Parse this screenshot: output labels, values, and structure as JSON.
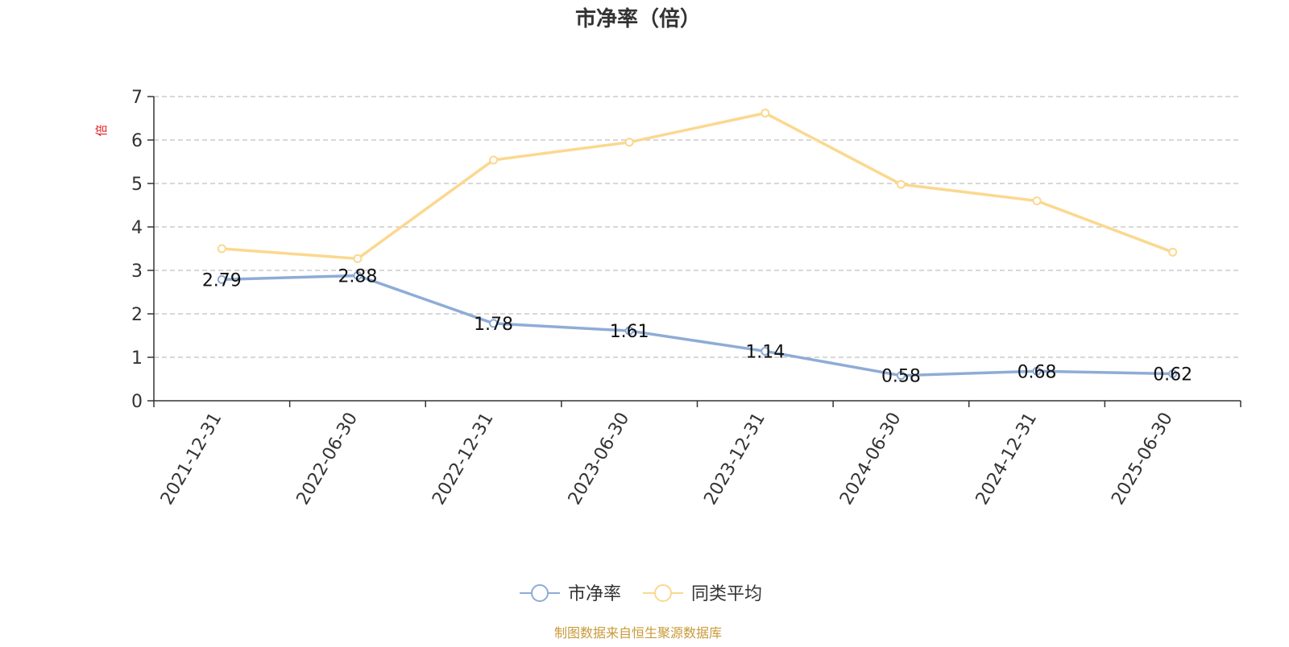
{
  "chart_data": {
    "type": "line",
    "title": "市净率（倍）",
    "ylabel": "倍",
    "xlabel": "",
    "categories": [
      "2021-12-31",
      "2022-06-30",
      "2022-12-31",
      "2023-06-30",
      "2023-12-31",
      "2024-06-30",
      "2024-12-31",
      "2025-06-30"
    ],
    "ylim": [
      0,
      7
    ],
    "yticks": [
      0,
      1,
      2,
      3,
      4,
      5,
      6,
      7
    ],
    "grid": true,
    "legend_position": "bottom-center",
    "series": [
      {
        "name": "市净率",
        "color": "#8eacd6",
        "values": [
          2.79,
          2.88,
          1.78,
          1.61,
          1.14,
          0.58,
          0.68,
          0.62
        ],
        "labels": [
          "2.79",
          "2.88",
          "1.78",
          "1.61",
          "1.14",
          "0.58",
          "0.68",
          "0.62"
        ],
        "show_labels": true
      },
      {
        "name": "同类平均",
        "color": "#fbd88f",
        "values": [
          3.5,
          3.27,
          5.54,
          5.95,
          6.62,
          4.98,
          4.6,
          3.42
        ],
        "show_labels": false
      }
    ],
    "source_note": "制图数据来自恒生聚源数据库"
  },
  "colors": {
    "axis": "#333333",
    "grid": "#cccccc",
    "ylabel": "#e02020",
    "source_note": "#c89a3a",
    "title": "#333333"
  }
}
